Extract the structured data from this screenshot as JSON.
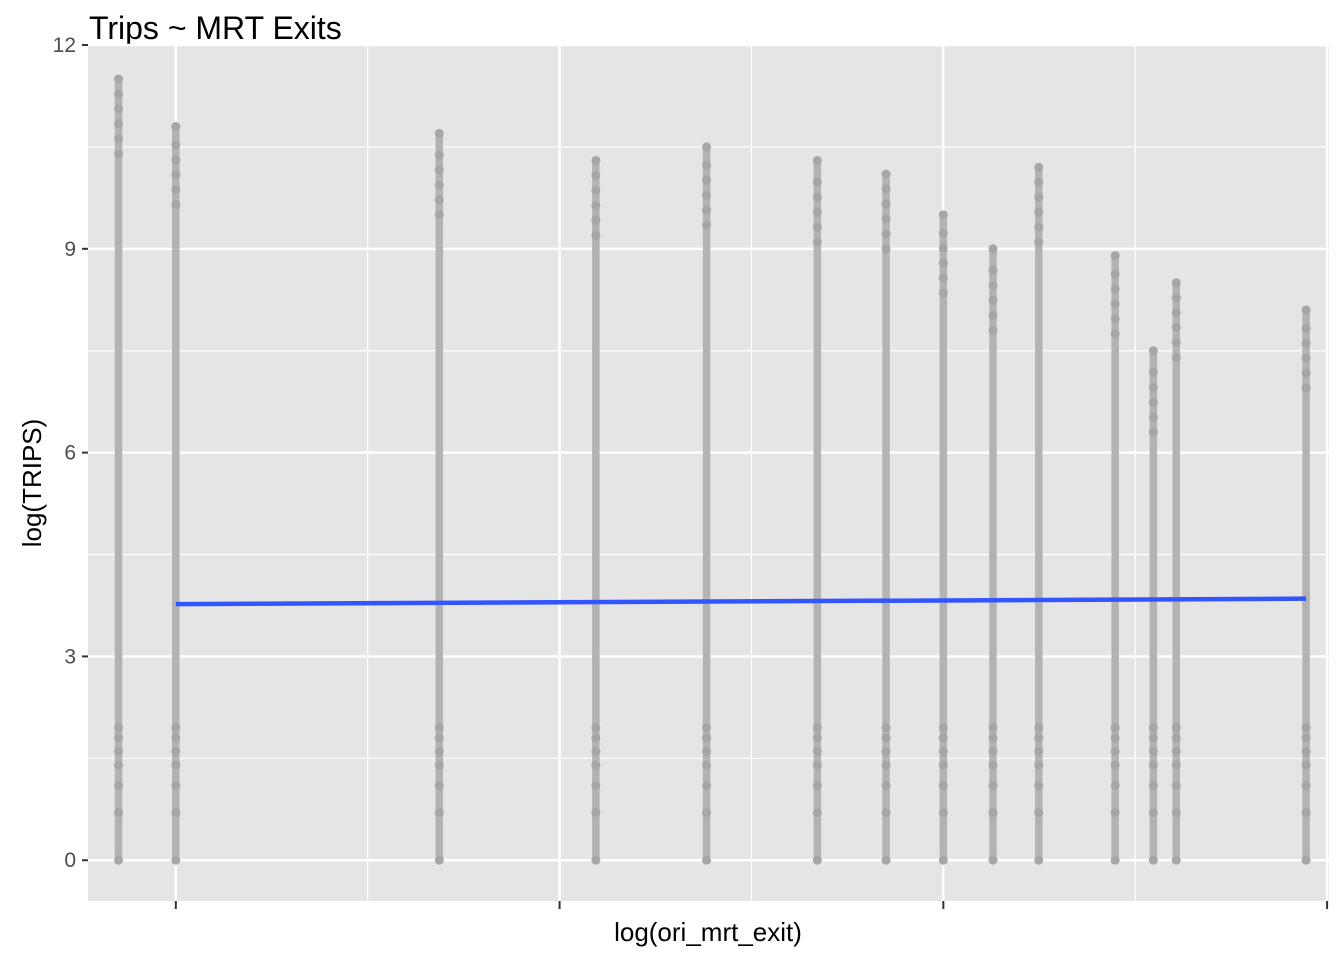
{
  "chart_data": {
    "type": "scatter",
    "title": "Trips ~ MRT Exits",
    "xlabel": "log(ori_mrt_exit)",
    "ylabel": "log(TRIPS)",
    "ylim": [
      -0.6,
      12
    ],
    "y_ticks": [
      0,
      3,
      6,
      9,
      12
    ],
    "y_tick_labels": [
      "0",
      "3",
      "6",
      "9",
      "12"
    ],
    "x_tick_labels": [
      "",
      "",
      "",
      ""
    ],
    "grid": true,
    "legend": "none",
    "point_color": "#b3b3b3",
    "line_color": "#3355ff",
    "panel_color": "#e5e5e5",
    "point_columns": [
      {
        "x": 0.0,
        "min": 0,
        "max": 11.5
      },
      {
        "x": 0.15,
        "min": 0,
        "max": 10.8
      },
      {
        "x": 0.84,
        "min": 0,
        "max": 10.7
      },
      {
        "x": 1.25,
        "min": 0,
        "max": 10.3
      },
      {
        "x": 1.54,
        "min": 0,
        "max": 10.5
      },
      {
        "x": 1.83,
        "min": 0,
        "max": 10.3
      },
      {
        "x": 2.01,
        "min": 0,
        "max": 10.1
      },
      {
        "x": 2.16,
        "min": 0,
        "max": 9.5
      },
      {
        "x": 2.29,
        "min": 0,
        "max": 9.0
      },
      {
        "x": 2.41,
        "min": 0,
        "max": 10.2
      },
      {
        "x": 2.61,
        "min": 0,
        "max": 8.9
      },
      {
        "x": 2.71,
        "min": 0,
        "max": 7.5
      },
      {
        "x": 2.77,
        "min": 0,
        "max": 8.5
      },
      {
        "x": 3.11,
        "min": 0,
        "max": 8.1
      }
    ],
    "series": [
      {
        "type": "line",
        "x": [
          0.15,
          3.11
        ],
        "y": [
          3.77,
          3.85
        ]
      }
    ]
  }
}
